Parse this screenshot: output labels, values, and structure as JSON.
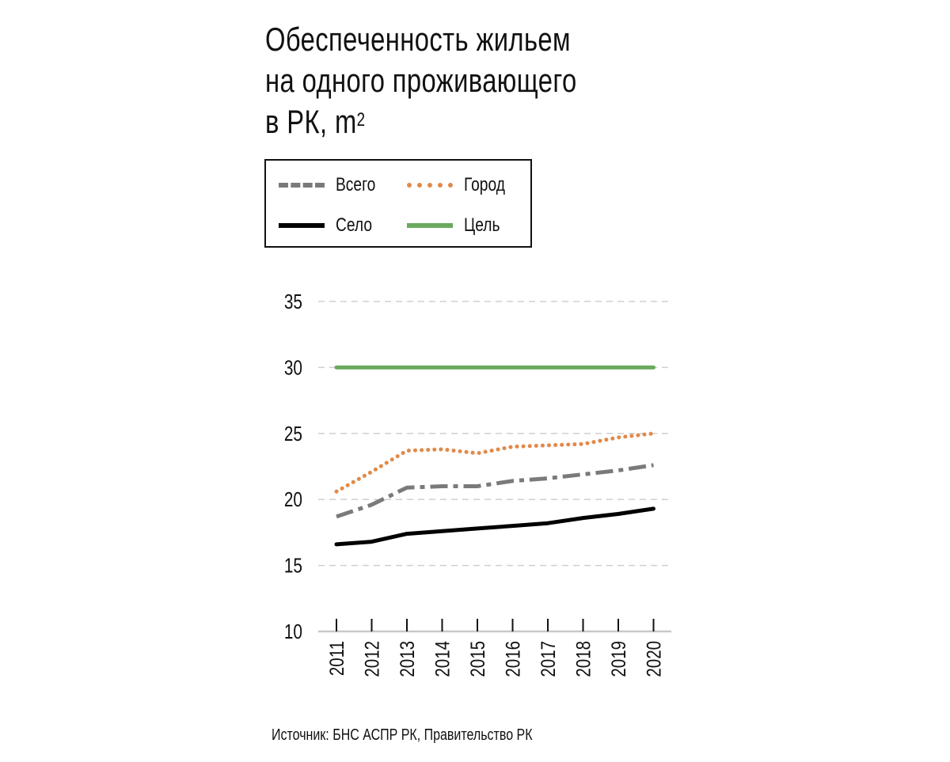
{
  "title": {
    "line1": "Обеспеченность жильем",
    "line2": "на одного проживающего",
    "line3": "в РК, m",
    "sup": "2"
  },
  "legend": [
    {
      "label": "Всего",
      "color": "#7a7a7a",
      "style": "dashdot"
    },
    {
      "label": "Город",
      "color": "#e08a4a",
      "style": "dotted"
    },
    {
      "label": "Село",
      "color": "#000000",
      "style": "solid"
    },
    {
      "label": "Цель",
      "color": "#6aaa5e",
      "style": "solid"
    }
  ],
  "source": "Источник: БНС АСПР РК, Правительство РК",
  "chart_data": {
    "type": "line",
    "x": [
      "2011",
      "2012",
      "2013",
      "2014",
      "2015",
      "2016",
      "2017",
      "2018",
      "2019",
      "2020"
    ],
    "ylim": [
      10,
      35
    ],
    "yticks": [
      "10",
      "15",
      "20",
      "25",
      "30",
      "35"
    ],
    "grid": true,
    "legend_position": "top",
    "series": [
      {
        "name": "Всего",
        "color": "#7a7a7a",
        "style": "dashdot",
        "values": [
          18.7,
          19.6,
          20.9,
          21.0,
          21.0,
          21.4,
          21.6,
          21.9,
          22.2,
          22.6
        ]
      },
      {
        "name": "Город",
        "color": "#e08a4a",
        "style": "dotted",
        "values": [
          20.6,
          22.1,
          23.7,
          23.8,
          23.5,
          24.0,
          24.1,
          24.2,
          24.7,
          25.0
        ]
      },
      {
        "name": "Село",
        "color": "#000000",
        "style": "solid",
        "values": [
          16.6,
          16.8,
          17.4,
          17.6,
          17.8,
          18.0,
          18.2,
          18.6,
          18.9,
          19.3
        ]
      },
      {
        "name": "Цель",
        "color": "#6aaa5e",
        "style": "solid",
        "values": [
          30,
          30,
          30,
          30,
          30,
          30,
          30,
          30,
          30,
          30
        ]
      }
    ]
  }
}
